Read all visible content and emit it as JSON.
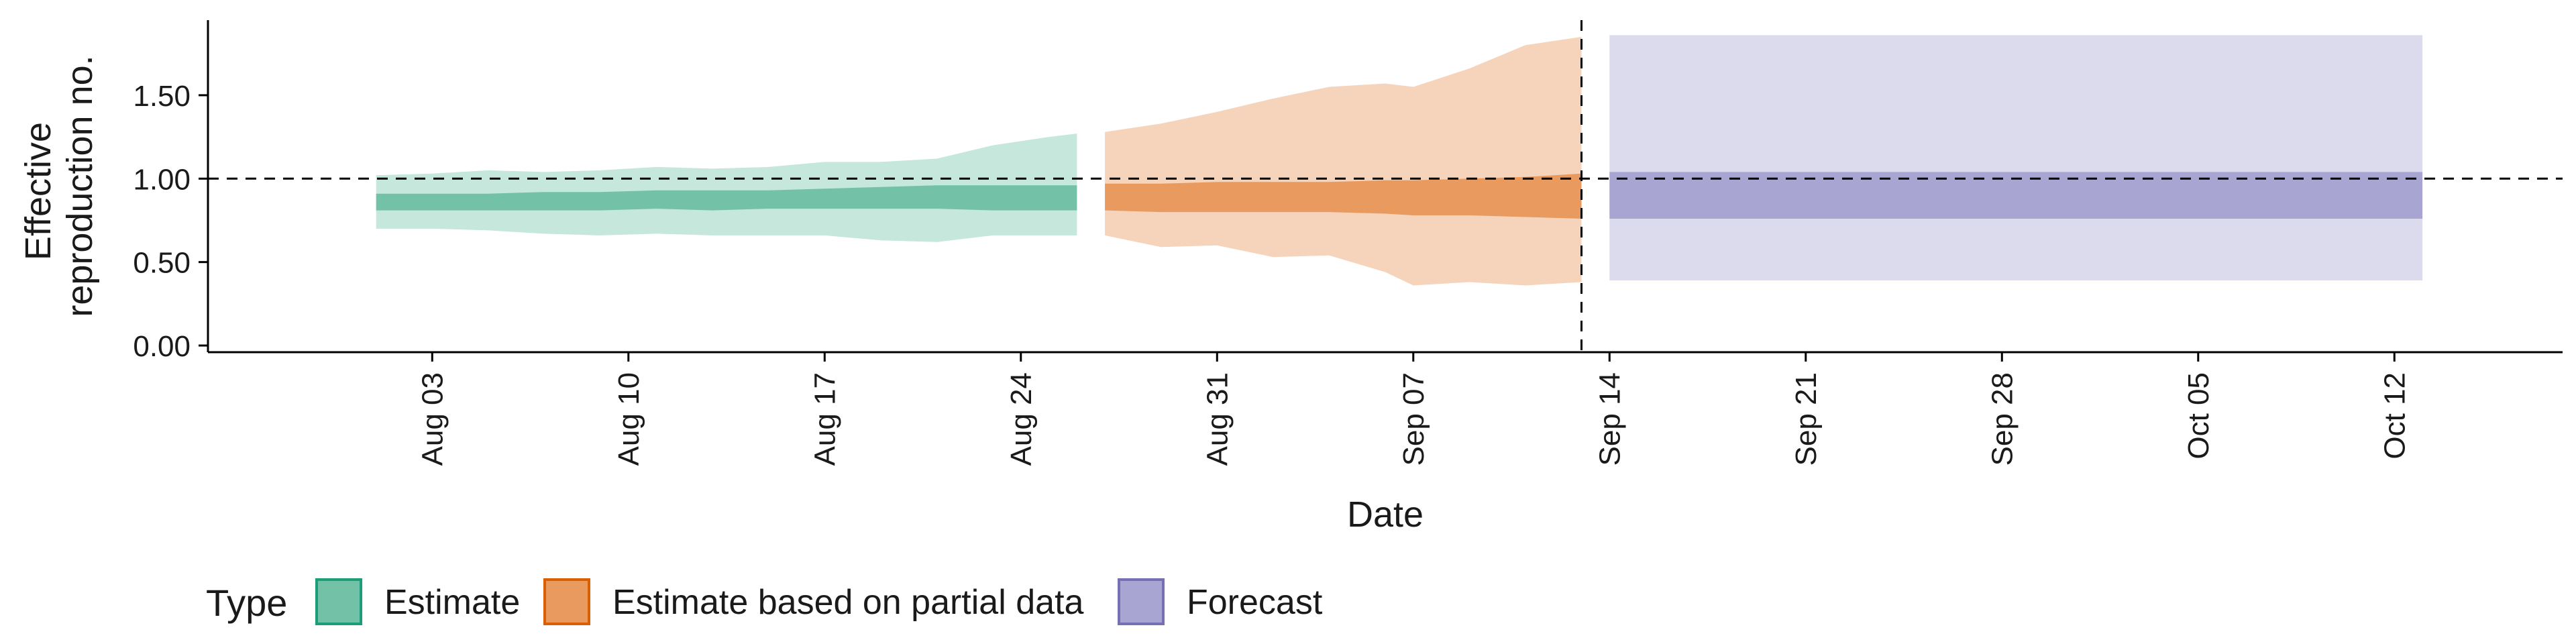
{
  "chart_data": {
    "type": "area",
    "title": "",
    "xlabel": "Date",
    "ylabel_lines": [
      "Effective",
      "reproduction no."
    ],
    "ylim": [
      -0.04,
      1.95
    ],
    "xlim": [
      "2021-07-26",
      "2021-10-18"
    ],
    "grid": false,
    "reference_line_y": 1.0,
    "forecast_start": "2021-09-13",
    "yticks": [
      {
        "value": 0.0,
        "label": "0.00"
      },
      {
        "value": 0.5,
        "label": "0.50"
      },
      {
        "value": 1.0,
        "label": "1.00"
      },
      {
        "value": 1.5,
        "label": "1.50"
      }
    ],
    "xticks": [
      {
        "value": "2021-08-03",
        "label": "Aug 03"
      },
      {
        "value": "2021-08-10",
        "label": "Aug 10"
      },
      {
        "value": "2021-08-17",
        "label": "Aug 17"
      },
      {
        "value": "2021-08-24",
        "label": "Aug 24"
      },
      {
        "value": "2021-08-31",
        "label": "Aug 31"
      },
      {
        "value": "2021-09-07",
        "label": "Sep 07"
      },
      {
        "value": "2021-09-14",
        "label": "Sep 14"
      },
      {
        "value": "2021-09-21",
        "label": "Sep 21"
      },
      {
        "value": "2021-09-28",
        "label": "Sep 28"
      },
      {
        "value": "2021-10-05",
        "label": "Oct 05"
      },
      {
        "value": "2021-10-12",
        "label": "Oct 12"
      }
    ],
    "legend": {
      "title": "Type",
      "placement": "bottom-left",
      "entries": [
        {
          "label": "Estimate",
          "fill": "#73c2a8",
          "stroke": "#1b9e77"
        },
        {
          "label": "Estimate based on partial data",
          "fill": "#e99a5f",
          "stroke": "#d95f02"
        },
        {
          "label": "Forecast",
          "fill": "#a8a5d3",
          "stroke": "#7570b3"
        }
      ]
    },
    "series": [
      {
        "type_index": 0,
        "outer_fill": "#c5e7dc",
        "inner_fill": "#73c2a8",
        "points": [
          {
            "date": "2021-08-01",
            "lo90": 0.7,
            "lo50": 0.81,
            "hi50": 0.91,
            "hi90": 1.02
          },
          {
            "date": "2021-08-03",
            "lo90": 0.7,
            "lo50": 0.81,
            "hi50": 0.91,
            "hi90": 1.03
          },
          {
            "date": "2021-08-05",
            "lo90": 0.69,
            "lo50": 0.81,
            "hi50": 0.91,
            "hi90": 1.05
          },
          {
            "date": "2021-08-07",
            "lo90": 0.67,
            "lo50": 0.81,
            "hi50": 0.92,
            "hi90": 1.04
          },
          {
            "date": "2021-08-09",
            "lo90": 0.66,
            "lo50": 0.81,
            "hi50": 0.92,
            "hi90": 1.05
          },
          {
            "date": "2021-08-11",
            "lo90": 0.67,
            "lo50": 0.82,
            "hi50": 0.93,
            "hi90": 1.07
          },
          {
            "date": "2021-08-13",
            "lo90": 0.66,
            "lo50": 0.81,
            "hi50": 0.93,
            "hi90": 1.06
          },
          {
            "date": "2021-08-15",
            "lo90": 0.66,
            "lo50": 0.82,
            "hi50": 0.93,
            "hi90": 1.07
          },
          {
            "date": "2021-08-17",
            "lo90": 0.66,
            "lo50": 0.82,
            "hi50": 0.94,
            "hi90": 1.1
          },
          {
            "date": "2021-08-19",
            "lo90": 0.63,
            "lo50": 0.82,
            "hi50": 0.95,
            "hi90": 1.1
          },
          {
            "date": "2021-08-21",
            "lo90": 0.62,
            "lo50": 0.82,
            "hi50": 0.96,
            "hi90": 1.12
          },
          {
            "date": "2021-08-23",
            "lo90": 0.66,
            "lo50": 0.81,
            "hi50": 0.96,
            "hi90": 1.2
          },
          {
            "date": "2021-08-25",
            "lo90": 0.66,
            "lo50": 0.81,
            "hi50": 0.96,
            "hi90": 1.25
          },
          {
            "date": "2021-08-26",
            "lo90": 0.66,
            "lo50": 0.81,
            "hi50": 0.96,
            "hi90": 1.27
          }
        ]
      },
      {
        "type_index": 1,
        "outer_fill": "#f6d4bc",
        "inner_fill": "#e99a5f",
        "points": [
          {
            "date": "2021-08-27",
            "lo90": 0.66,
            "lo50": 0.81,
            "hi50": 0.97,
            "hi90": 1.28
          },
          {
            "date": "2021-08-29",
            "lo90": 0.59,
            "lo50": 0.8,
            "hi50": 0.97,
            "hi90": 1.33
          },
          {
            "date": "2021-08-31",
            "lo90": 0.6,
            "lo50": 0.8,
            "hi50": 0.98,
            "hi90": 1.4
          },
          {
            "date": "2021-09-02",
            "lo90": 0.53,
            "lo50": 0.8,
            "hi50": 0.98,
            "hi90": 1.48
          },
          {
            "date": "2021-09-04",
            "lo90": 0.54,
            "lo50": 0.8,
            "hi50": 0.98,
            "hi90": 1.55
          },
          {
            "date": "2021-09-06",
            "lo90": 0.44,
            "lo50": 0.79,
            "hi50": 0.99,
            "hi90": 1.57
          },
          {
            "date": "2021-09-07",
            "lo90": 0.36,
            "lo50": 0.78,
            "hi50": 0.99,
            "hi90": 1.55
          },
          {
            "date": "2021-09-09",
            "lo90": 0.38,
            "lo50": 0.78,
            "hi50": 1.0,
            "hi90": 1.66
          },
          {
            "date": "2021-09-11",
            "lo90": 0.36,
            "lo50": 0.77,
            "hi50": 1.01,
            "hi90": 1.8
          },
          {
            "date": "2021-09-13",
            "lo90": 0.38,
            "lo50": 0.76,
            "hi50": 1.03,
            "hi90": 1.85
          }
        ]
      },
      {
        "type_index": 2,
        "outer_fill": "#dcdbee",
        "inner_fill": "#a8a5d3",
        "points": [
          {
            "date": "2021-09-14",
            "lo90": 0.39,
            "lo50": 0.76,
            "hi50": 1.04,
            "hi90": 1.86
          },
          {
            "date": "2021-10-13",
            "lo90": 0.39,
            "lo50": 0.76,
            "hi50": 1.04,
            "hi90": 1.86
          }
        ]
      }
    ]
  }
}
